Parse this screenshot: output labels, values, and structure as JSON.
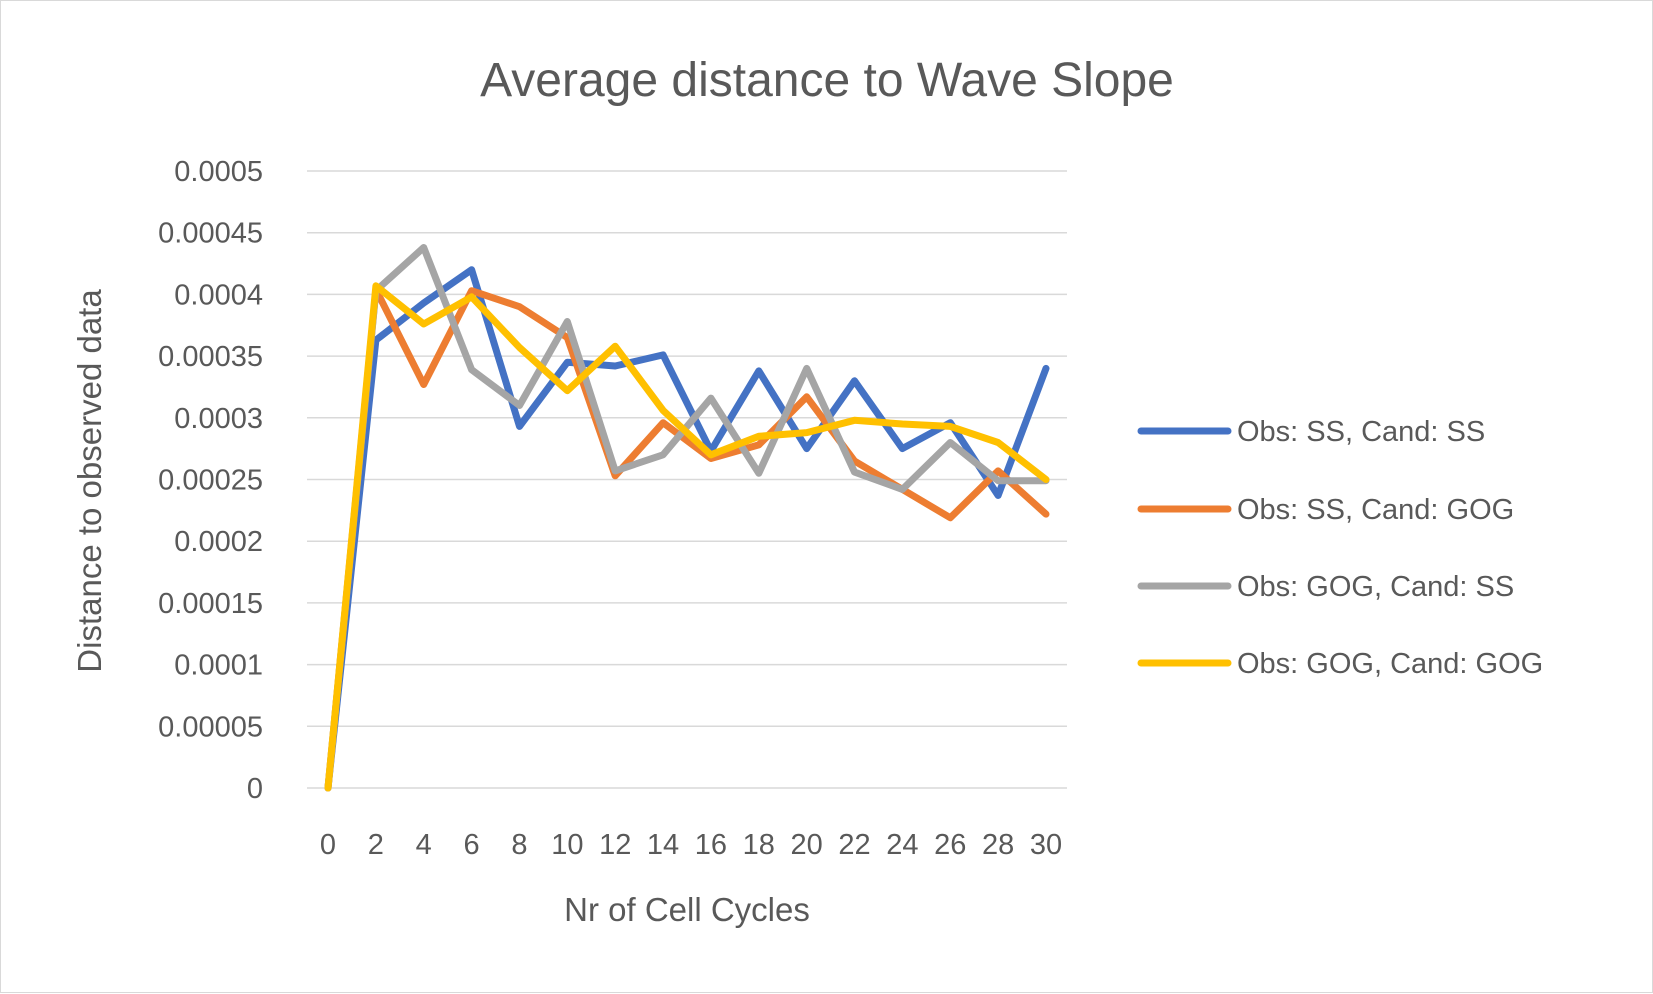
{
  "chart_data": {
    "type": "line",
    "title": "Average distance to Wave Slope",
    "xlabel": "Nr of Cell Cycles",
    "ylabel": "Distance to observed data",
    "x": [
      0,
      2,
      4,
      6,
      8,
      10,
      12,
      14,
      16,
      18,
      20,
      22,
      24,
      26,
      28,
      30
    ],
    "x_tick_labels": [
      "0",
      "2",
      "4",
      "6",
      "8",
      "10",
      "12",
      "14",
      "16",
      "18",
      "20",
      "22",
      "24",
      "26",
      "28",
      "30"
    ],
    "ylim": [
      0,
      0.0005
    ],
    "y_tick_labels": [
      "0",
      "0.00005",
      "0.0001",
      "0.00015",
      "0.0002",
      "0.00025",
      "0.0003",
      "0.00035",
      "0.0004",
      "0.00045",
      "0.0005"
    ],
    "y_ticks": [
      0,
      5e-05,
      0.0001,
      0.00015,
      0.0002,
      0.00025,
      0.0003,
      0.00035,
      0.0004,
      0.00045,
      0.0005
    ],
    "grid": true,
    "legend_position": "right",
    "series": [
      {
        "name": "Obs: SS, Cand: SS",
        "color": "#4472c4",
        "values": [
          0,
          0.000363,
          0.000393,
          0.00042,
          0.000293,
          0.000345,
          0.000342,
          0.000351,
          0.000273,
          0.000338,
          0.000275,
          0.00033,
          0.000275,
          0.000296,
          0.000237,
          0.00034
        ]
      },
      {
        "name": "Obs: SS, Cand: GOG",
        "color": "#ed7d31",
        "values": [
          0,
          0.000404,
          0.000327,
          0.000403,
          0.00039,
          0.000365,
          0.000253,
          0.000296,
          0.000267,
          0.000278,
          0.000317,
          0.000265,
          0.000242,
          0.000219,
          0.000257,
          0.000222
        ]
      },
      {
        "name": "Obs: GOG, Cand: SS",
        "color": "#a5a5a5",
        "values": [
          0,
          0.000403,
          0.000438,
          0.000339,
          0.00031,
          0.000378,
          0.000257,
          0.00027,
          0.000316,
          0.000255,
          0.00034,
          0.000256,
          0.000242,
          0.00028,
          0.000249,
          0.000249
        ]
      },
      {
        "name": "Obs: GOG, Cand: GOG",
        "color": "#ffc000",
        "values": [
          0,
          0.000407,
          0.000376,
          0.000398,
          0.000357,
          0.000322,
          0.000358,
          0.000306,
          0.00027,
          0.000285,
          0.000288,
          0.000298,
          0.000295,
          0.000293,
          0.00028,
          0.00025
        ]
      }
    ]
  }
}
